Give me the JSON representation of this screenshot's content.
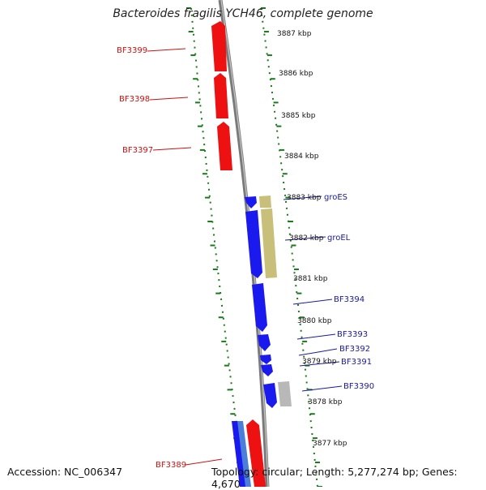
{
  "title": "Bacteroides fragilis YCH46, complete genome",
  "footer": {
    "accession": "Accession: NC_006347",
    "topology": "Topology: circular; Length: 5,277,274 bp; Genes: 4,670"
  },
  "scale_labels": [
    "3887 kbp",
    "3886 kbp",
    "3885 kbp",
    "3884 kbp",
    "3883 kbp",
    "3882 kbp",
    "3881 kbp",
    "3880 kbp",
    "3879 kbp",
    "3878 kbp",
    "3877 kbp"
  ],
  "gene_labels": [
    {
      "text": "BF3399",
      "strand": "reverse"
    },
    {
      "text": "BF3398",
      "strand": "reverse"
    },
    {
      "text": "BF3397",
      "strand": "reverse"
    },
    {
      "text": "groES",
      "strand": "forward"
    },
    {
      "text": "groEL",
      "strand": "forward"
    },
    {
      "text": "BF3394",
      "strand": "forward"
    },
    {
      "text": "BF3393",
      "strand": "forward"
    },
    {
      "text": "BF3392",
      "strand": "forward"
    },
    {
      "text": "BF3391",
      "strand": "forward"
    },
    {
      "text": "BF3390",
      "strand": "forward"
    },
    {
      "text": "BF3389",
      "strand": "reverse"
    }
  ],
  "colors": {
    "reverse_gene": "#ee1111",
    "forward_gene": "#1a1aee",
    "forward_label": "#1a1a99",
    "reverse_label": "#cc1111",
    "olive_feature": "#c8c07a",
    "gray_feature": "#b8b8b8",
    "backbone": "#7a7a7a",
    "ruler": "#1a7a1a"
  }
}
